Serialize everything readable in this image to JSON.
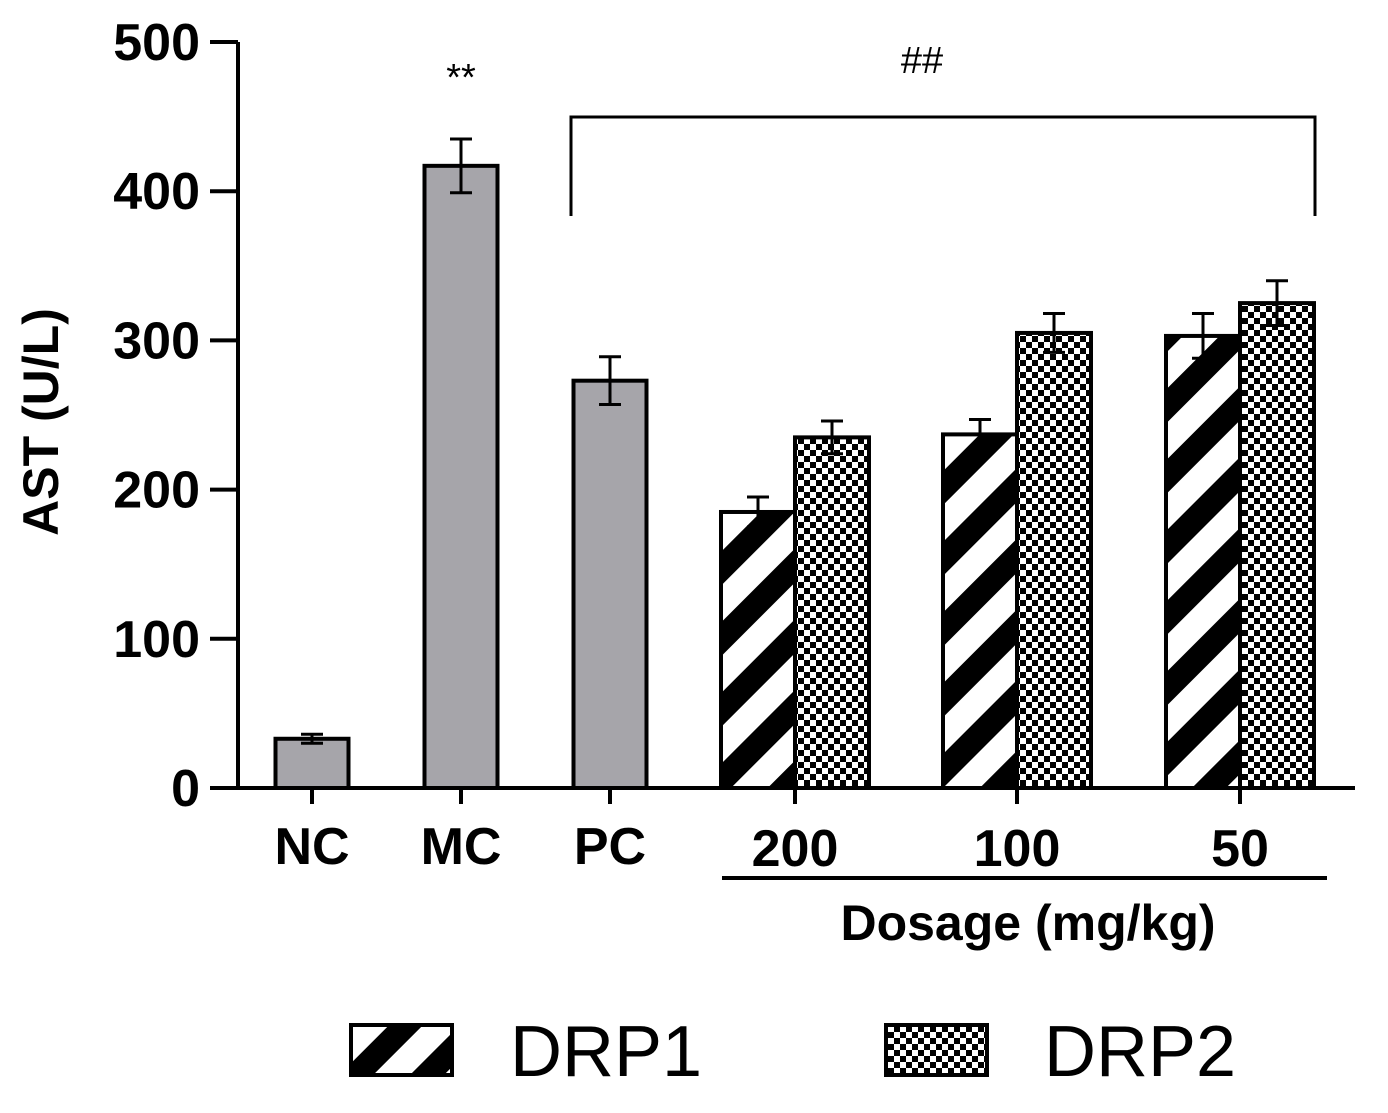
{
  "chart_data": {
    "type": "bar",
    "ylabel": "AST (U/L)",
    "xlabel": "Dosage (mg/kg)",
    "ylim": [
      0,
      500
    ],
    "yticks": [
      0,
      100,
      200,
      300,
      400,
      500
    ],
    "control_groups": [
      {
        "label": "NC",
        "value": 33,
        "error": 3,
        "annotation": ""
      },
      {
        "label": "MC",
        "value": 417,
        "error": 18,
        "annotation": "**"
      },
      {
        "label": "PC",
        "value": 273,
        "error": 16,
        "annotation": ""
      }
    ],
    "dose_categories": [
      "200",
      "100",
      "50"
    ],
    "series": [
      {
        "name": "DRP1",
        "pattern": "diagonal-stripes",
        "values": [
          185,
          237,
          303
        ],
        "errors": [
          10,
          10,
          15
        ]
      },
      {
        "name": "DRP2",
        "pattern": "checkerboard",
        "values": [
          235,
          305,
          325
        ],
        "errors": [
          11,
          13,
          15
        ]
      }
    ],
    "group_annotation": "##",
    "colors": {
      "control_bar": "#a6a5aa",
      "stroke": "#000000",
      "background": "#ffffff"
    }
  }
}
